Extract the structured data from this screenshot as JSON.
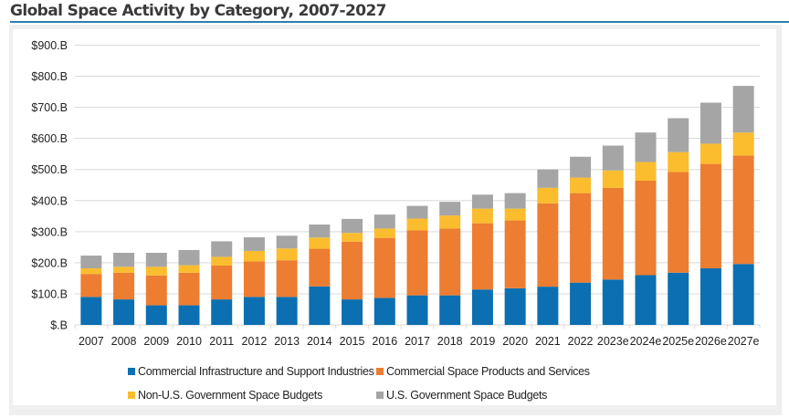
{
  "chart_data": {
    "type": "bar",
    "stacked": true,
    "title": "Global Space Activity by Category, 2007-2027",
    "xlabel": "",
    "ylabel": "",
    "ylim": [
      0,
      900
    ],
    "yticks": [
      "$.B",
      "$100.B",
      "$200.B",
      "$300.B",
      "$400.B",
      "$500.B",
      "$600.B",
      "$700.B",
      "$800.B",
      "$900.B"
    ],
    "grid": true,
    "legend_position": "bottom",
    "categories": [
      "2007",
      "2008",
      "2009",
      "2010",
      "2011",
      "2012",
      "2013",
      "2014",
      "2015",
      "2016",
      "2017",
      "2018",
      "2019",
      "2020",
      "2021",
      "2022",
      "2023e",
      "2024e",
      "2025e",
      "2026e",
      "2027e"
    ],
    "series": [
      {
        "name": "Commercial Infrastructure and Support Industries",
        "color": "#0b6fb1",
        "values": [
          90,
          82,
          63,
          63,
          82,
          90,
          90,
          124,
          82,
          87,
          95,
          95,
          114,
          118,
          123,
          136,
          146,
          160,
          168,
          182,
          196
        ]
      },
      {
        "name": "Commercial Space Products and Services",
        "color": "#ec7d31",
        "values": [
          74,
          86,
          96,
          105,
          109,
          114,
          118,
          121,
          186,
          193,
          209,
          215,
          213,
          218,
          268,
          288,
          295,
          304,
          324,
          336,
          349
        ]
      },
      {
        "name": "Non-U.S. Government Space Budgets",
        "color": "#fbbd2e",
        "values": [
          18,
          19,
          28,
          24,
          28,
          34,
          38,
          36,
          28,
          30,
          38,
          42,
          47,
          38,
          50,
          50,
          56,
          60,
          64,
          65,
          74
        ]
      },
      {
        "name": "U.S. Government Space Budgets",
        "color": "#a5a5a5",
        "values": [
          41,
          45,
          45,
          49,
          50,
          44,
          41,
          42,
          45,
          45,
          41,
          44,
          45,
          50,
          59,
          67,
          80,
          95,
          109,
          132,
          150
        ]
      }
    ]
  }
}
